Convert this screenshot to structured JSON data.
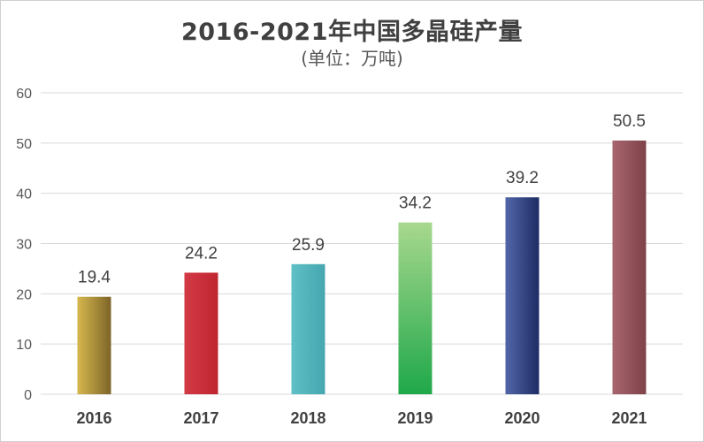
{
  "chart_data": {
    "type": "bar",
    "title": "2016-2021年中国多晶硅产量",
    "subtitle": "(单位：万吨)",
    "categories": [
      "2016",
      "2017",
      "2018",
      "2019",
      "2020",
      "2021"
    ],
    "values": [
      19.4,
      24.2,
      25.9,
      34.2,
      39.2,
      50.5
    ],
    "value_labels": [
      "19.4",
      "24.2",
      "25.9",
      "34.2",
      "39.2",
      "50.5"
    ],
    "xlabel": "",
    "ylabel": "",
    "ylim": [
      0,
      60
    ],
    "yticks": [
      0,
      10,
      20,
      30,
      40,
      50,
      60
    ],
    "ytick_labels": [
      "0",
      "10",
      "20",
      "30",
      "40",
      "50",
      "60"
    ],
    "grid": true,
    "legend": "none",
    "bar_colors": [
      [
        "#d6b84e",
        "#7d6428"
      ],
      [
        "#d23a46",
        "#c0252f"
      ],
      [
        "#5fc0c6",
        "#45a6b0"
      ],
      [
        "#a8d88e",
        "#1fa84a"
      ],
      [
        "#5266a8",
        "#1e2c64"
      ],
      [
        "#a8666e",
        "#7e4248"
      ]
    ],
    "colors": {
      "grid": "#d9d9d9",
      "axis_text": "#595959",
      "label_text": "#404040"
    }
  }
}
